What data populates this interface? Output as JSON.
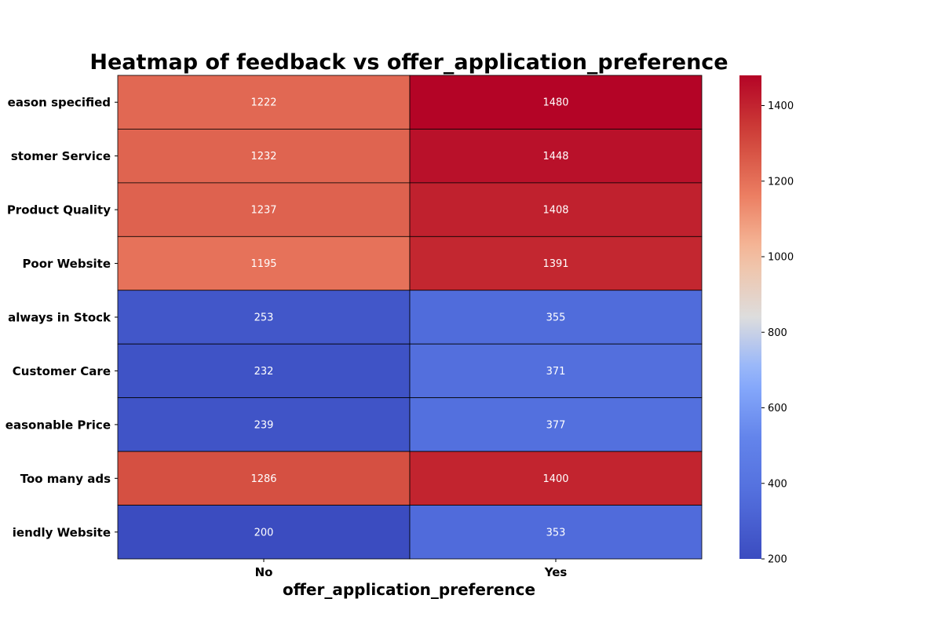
{
  "chart_data": {
    "type": "heatmap",
    "title": "Heatmap of feedback vs offer_application_preference",
    "xlabel": "offer_application_preference",
    "ylabel": "",
    "x_categories": [
      "No",
      "Yes"
    ],
    "y_categories": [
      "No reason specified",
      "Poor Customer Service",
      "Poor Product Quality",
      "Poor Website",
      "Products always in Stock",
      "Quality Customer Care",
      "Reasonable Price",
      "Too many ads",
      "User Friendly Website"
    ],
    "y_tick_labels_visible": [
      "eason specified",
      "stomer Service",
      "Product Quality",
      "Poor Website",
      "always in Stock",
      "Customer Care",
      "easonable Price",
      "Too many ads",
      "iendly Website"
    ],
    "values": [
      [
        1222,
        1480
      ],
      [
        1232,
        1448
      ],
      [
        1237,
        1408
      ],
      [
        1195,
        1391
      ],
      [
        253,
        355
      ],
      [
        232,
        371
      ],
      [
        239,
        377
      ],
      [
        1286,
        1400
      ],
      [
        200,
        353
      ]
    ],
    "colormap": "coolwarm",
    "colorbar": {
      "min": 200,
      "max": 1480,
      "ticks": [
        200,
        400,
        600,
        800,
        1000,
        1200,
        1400
      ]
    },
    "annotations": true,
    "cell_border_color": "#000000"
  }
}
